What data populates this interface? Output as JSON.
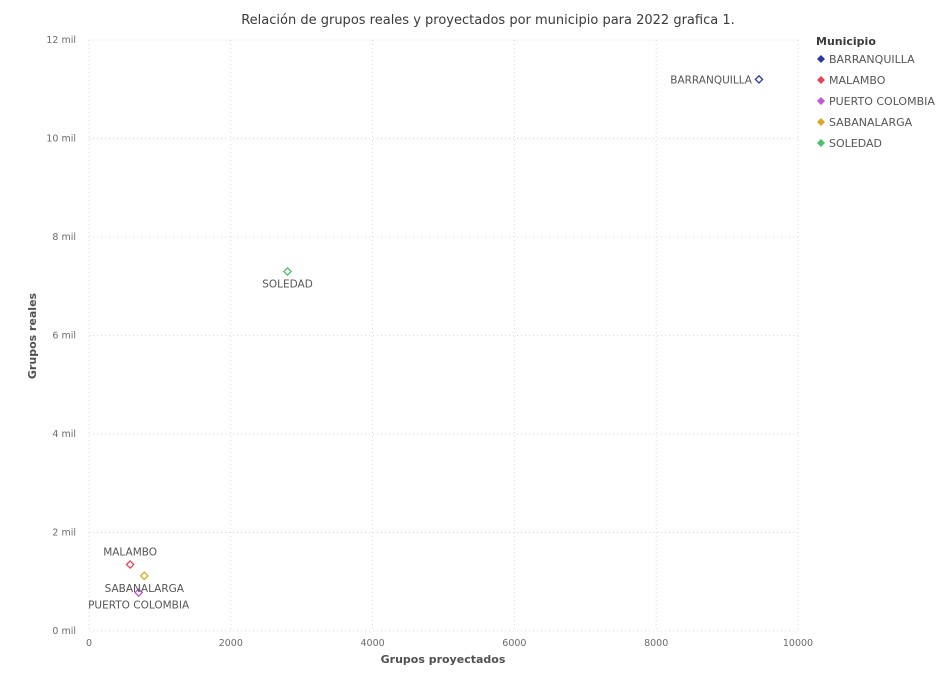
{
  "chart_data": {
    "type": "scatter",
    "title": "Relación de grupos reales y proyectados por municipio para 2022 grafica 1.",
    "xlabel": "Grupos proyectados",
    "ylabel": "Grupos reales",
    "xlim": [
      0,
      10000
    ],
    "ylim": [
      0,
      12000
    ],
    "x_ticks": [
      {
        "value": 0,
        "label": "0"
      },
      {
        "value": 2000,
        "label": "2000"
      },
      {
        "value": 4000,
        "label": "4000"
      },
      {
        "value": 6000,
        "label": "6000"
      },
      {
        "value": 8000,
        "label": "8000"
      },
      {
        "value": 10000,
        "label": "10000"
      }
    ],
    "y_ticks": [
      {
        "value": 0,
        "label": "0 mil"
      },
      {
        "value": 2000,
        "label": "2 mil"
      },
      {
        "value": 4000,
        "label": "4 mil"
      },
      {
        "value": 6000,
        "label": "6 mil"
      },
      {
        "value": 8000,
        "label": "8 mil"
      },
      {
        "value": 10000,
        "label": "10 mil"
      },
      {
        "value": 12000,
        "label": "12 mil"
      }
    ],
    "grid": true,
    "legend_title": "Municipio",
    "legend_position": "top-right",
    "marker": "hollow-diamond",
    "series": [
      {
        "name": "BARRANQUILLA",
        "color": "#2b35a6",
        "x": 9450,
        "y": 11200,
        "label_position": "left"
      },
      {
        "name": "MALAMBO",
        "color": "#e0455a",
        "x": 580,
        "y": 1350,
        "label_position": "above"
      },
      {
        "name": "PUERTO COLOMBIA",
        "color": "#c355d6",
        "x": 700,
        "y": 780,
        "label_position": "below"
      },
      {
        "name": "SABANALARGA",
        "color": "#d9a820",
        "x": 780,
        "y": 1120,
        "label_position": "below"
      },
      {
        "name": "SOLEDAD",
        "color": "#4cc06a",
        "x": 2800,
        "y": 7300,
        "label_position": "below"
      }
    ]
  }
}
